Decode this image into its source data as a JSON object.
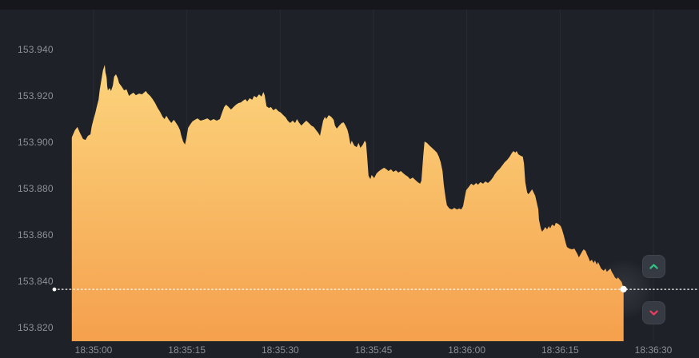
{
  "chart_data": {
    "type": "area",
    "title": "",
    "legend": "none",
    "grid": "vertical-only",
    "x_axis": {
      "unit": "time (HH:MM:SS)",
      "tick_interval_seconds": 15,
      "ticks": [
        {
          "s": 0,
          "label": "18:35:00"
        },
        {
          "s": 15,
          "label": "18:35:15"
        },
        {
          "s": 30,
          "label": "18:35:30"
        },
        {
          "s": 45,
          "label": "18:35:45"
        },
        {
          "s": 60,
          "label": "18:36:00"
        },
        {
          "s": 75,
          "label": "18:36:15"
        },
        {
          "s": 90,
          "label": "18:36:30"
        }
      ]
    },
    "y_axis": {
      "unit": "price",
      "ticks": [
        {
          "v": 153.94,
          "label": "153.940"
        },
        {
          "v": 153.92,
          "label": "153.920"
        },
        {
          "v": 153.9,
          "label": "153.900"
        },
        {
          "v": 153.88,
          "label": "153.880"
        },
        {
          "v": 153.86,
          "label": "153.860"
        },
        {
          "v": 153.84,
          "label": "153.840"
        },
        {
          "v": 153.82,
          "label": "153.820"
        }
      ]
    },
    "current_price": 153.8365,
    "price_range_shown": [
      153.814,
      153.957
    ],
    "time_range_shown_seconds": [
      -3.5,
      97.3
    ],
    "series": [
      {
        "name": "price",
        "points": [
          [
            -3.5,
            153.9021
          ],
          [
            -3.0,
            153.9052
          ],
          [
            -2.6,
            153.9066
          ],
          [
            -2.2,
            153.9041
          ],
          [
            -1.7,
            153.9014
          ],
          [
            -1.3,
            153.901
          ],
          [
            -0.9,
            153.9028
          ],
          [
            -0.5,
            153.9034
          ],
          [
            -0.3,
            153.9069
          ],
          [
            0,
            153.91
          ],
          [
            0.3,
            153.9128
          ],
          [
            0.5,
            153.9152
          ],
          [
            0.8,
            153.9183
          ],
          [
            1.0,
            153.9228
          ],
          [
            1.3,
            153.9276
          ],
          [
            1.5,
            153.931
          ],
          [
            1.8,
            153.9334
          ],
          [
            1.9,
            153.9303
          ],
          [
            2.1,
            153.9279
          ],
          [
            2.2,
            153.9241
          ],
          [
            2.3,
            153.9224
          ],
          [
            2.6,
            153.9234
          ],
          [
            2.8,
            153.9221
          ],
          [
            3.1,
            153.9245
          ],
          [
            3.3,
            153.9283
          ],
          [
            3.6,
            153.9293
          ],
          [
            3.9,
            153.9276
          ],
          [
            4.1,
            153.9255
          ],
          [
            4.5,
            153.9241
          ],
          [
            4.9,
            153.9224
          ],
          [
            5.3,
            153.9228
          ],
          [
            5.7,
            153.92
          ],
          [
            6.0,
            153.9207
          ],
          [
            6.4,
            153.9214
          ],
          [
            6.8,
            153.9203
          ],
          [
            7.3,
            153.921
          ],
          [
            7.8,
            153.9207
          ],
          [
            8.4,
            153.9221
          ],
          [
            8.7,
            153.921
          ],
          [
            9.1,
            153.92
          ],
          [
            9.5,
            153.9186
          ],
          [
            9.9,
            153.9169
          ],
          [
            10.3,
            153.9148
          ],
          [
            10.7,
            153.9131
          ],
          [
            11.1,
            153.911
          ],
          [
            11.4,
            153.91
          ],
          [
            11.7,
            153.9114
          ],
          [
            12.1,
            153.9097
          ],
          [
            12.5,
            153.9083
          ],
          [
            12.9,
            153.9097
          ],
          [
            13.2,
            153.9086
          ],
          [
            13.6,
            153.9069
          ],
          [
            13.9,
            153.9052
          ],
          [
            14.1,
            153.9028
          ],
          [
            14.4,
            153.9003
          ],
          [
            14.7,
            153.899
          ],
          [
            14.9,
            153.9014
          ],
          [
            15.2,
            153.9062
          ],
          [
            15.6,
            153.9079
          ],
          [
            15.9,
            153.909
          ],
          [
            16.3,
            153.9097
          ],
          [
            16.7,
            153.9103
          ],
          [
            17.2,
            153.9093
          ],
          [
            17.7,
            153.9097
          ],
          [
            18.3,
            153.9103
          ],
          [
            18.8,
            153.9093
          ],
          [
            19.3,
            153.91
          ],
          [
            19.8,
            153.9093
          ],
          [
            20.3,
            153.91
          ],
          [
            20.7,
            153.9131
          ],
          [
            21.0,
            153.9152
          ],
          [
            21.3,
            153.9162
          ],
          [
            21.7,
            153.9152
          ],
          [
            22.1,
            153.9141
          ],
          [
            22.5,
            153.9152
          ],
          [
            22.9,
            153.9162
          ],
          [
            23.3,
            153.9169
          ],
          [
            23.7,
            153.9172
          ],
          [
            24.0,
            153.9179
          ],
          [
            24.4,
            153.9186
          ],
          [
            24.7,
            153.9176
          ],
          [
            25.1,
            153.919
          ],
          [
            25.5,
            153.9183
          ],
          [
            25.8,
            153.92
          ],
          [
            26.2,
            153.9193
          ],
          [
            26.6,
            153.9207
          ],
          [
            27.0,
            153.9197
          ],
          [
            27.3,
            153.9217
          ],
          [
            27.5,
            153.9203
          ],
          [
            27.8,
            153.9155
          ],
          [
            28.2,
            153.9148
          ],
          [
            28.5,
            153.9152
          ],
          [
            28.9,
            153.9138
          ],
          [
            29.3,
            153.9145
          ],
          [
            29.7,
            153.9134
          ],
          [
            30.1,
            153.9128
          ],
          [
            30.5,
            153.9117
          ],
          [
            30.9,
            153.9107
          ],
          [
            31.2,
            153.9093
          ],
          [
            31.6,
            153.9083
          ],
          [
            32.0,
            153.9093
          ],
          [
            32.4,
            153.9083
          ],
          [
            32.7,
            153.91
          ],
          [
            33.0,
            153.9086
          ],
          [
            33.4,
            153.9072
          ],
          [
            33.8,
            153.9083
          ],
          [
            34.2,
            153.9093
          ],
          [
            34.6,
            153.9083
          ],
          [
            35.0,
            153.9072
          ],
          [
            35.4,
            153.9066
          ],
          [
            35.7,
            153.9055
          ],
          [
            36.1,
            153.9041
          ],
          [
            36.4,
            153.9028
          ],
          [
            36.6,
            153.9055
          ],
          [
            36.9,
            153.9093
          ],
          [
            37.2,
            153.911
          ],
          [
            37.4,
            153.91
          ],
          [
            37.8,
            153.9117
          ],
          [
            38.2,
            153.911
          ],
          [
            38.6,
            153.9097
          ],
          [
            38.8,
            153.9072
          ],
          [
            39.1,
            153.9059
          ],
          [
            39.5,
            153.9072
          ],
          [
            39.9,
            153.9083
          ],
          [
            40.2,
            153.9086
          ],
          [
            40.5,
            153.9072
          ],
          [
            40.8,
            153.9055
          ],
          [
            41.0,
            153.9034
          ],
          [
            41.3,
            153.899
          ],
          [
            41.5,
            153.9007
          ],
          [
            41.9,
            153.8986
          ],
          [
            42.3,
            153.8979
          ],
          [
            42.6,
            153.8997
          ],
          [
            42.9,
            153.8976
          ],
          [
            43.3,
            153.899
          ],
          [
            43.6,
            153.9007
          ],
          [
            43.8,
            153.8997
          ],
          [
            44.0,
            153.8931
          ],
          [
            44.2,
            153.8855
          ],
          [
            44.5,
            153.8841
          ],
          [
            44.7,
            153.8859
          ],
          [
            45.1,
            153.8845
          ],
          [
            45.5,
            153.8866
          ],
          [
            45.9,
            153.8876
          ],
          [
            46.3,
            153.8883
          ],
          [
            46.7,
            153.889
          ],
          [
            47.1,
            153.8883
          ],
          [
            47.4,
            153.8876
          ],
          [
            47.8,
            153.8883
          ],
          [
            48.2,
            153.8872
          ],
          [
            48.6,
            153.8879
          ],
          [
            49.0,
            153.8869
          ],
          [
            49.4,
            153.8876
          ],
          [
            49.8,
            153.8866
          ],
          [
            50.1,
            153.8859
          ],
          [
            50.5,
            153.8852
          ],
          [
            50.9,
            153.8841
          ],
          [
            51.3,
            153.8848
          ],
          [
            51.7,
            153.8838
          ],
          [
            52.1,
            153.8828
          ],
          [
            52.5,
            153.8821
          ],
          [
            52.7,
            153.8834
          ],
          [
            53.0,
            153.8941
          ],
          [
            53.2,
            153.9003
          ],
          [
            53.6,
            153.8997
          ],
          [
            54.0,
            153.8986
          ],
          [
            54.4,
            153.8976
          ],
          [
            54.8,
            153.8966
          ],
          [
            55.2,
            153.8955
          ],
          [
            55.5,
            153.8938
          ],
          [
            55.8,
            153.8914
          ],
          [
            56.1,
            153.8876
          ],
          [
            56.3,
            153.8817
          ],
          [
            56.6,
            153.8759
          ],
          [
            56.8,
            153.8728
          ],
          [
            57.2,
            153.8714
          ],
          [
            57.6,
            153.871
          ],
          [
            58.0,
            153.8717
          ],
          [
            58.4,
            153.871
          ],
          [
            58.8,
            153.8714
          ],
          [
            59.1,
            153.871
          ],
          [
            59.4,
            153.8724
          ],
          [
            59.7,
            153.8766
          ],
          [
            59.9,
            153.8793
          ],
          [
            60.3,
            153.8807
          ],
          [
            60.7,
            153.8821
          ],
          [
            61.1,
            153.8814
          ],
          [
            61.5,
            153.8824
          ],
          [
            61.8,
            153.8817
          ],
          [
            62.2,
            153.8828
          ],
          [
            62.6,
            153.8821
          ],
          [
            63.0,
            153.8831
          ],
          [
            63.4,
            153.8824
          ],
          [
            63.8,
            153.8834
          ],
          [
            64.2,
            153.8848
          ],
          [
            64.5,
            153.8862
          ],
          [
            64.9,
            153.8876
          ],
          [
            65.3,
            153.8886
          ],
          [
            65.7,
            153.89
          ],
          [
            66.1,
            153.8914
          ],
          [
            66.5,
            153.8924
          ],
          [
            66.9,
            153.8938
          ],
          [
            67.2,
            153.8952
          ],
          [
            67.5,
            153.8962
          ],
          [
            67.8,
            153.8955
          ],
          [
            68.0,
            153.8962
          ],
          [
            68.3,
            153.8948
          ],
          [
            68.7,
            153.8941
          ],
          [
            69.0,
            153.8938
          ],
          [
            69.2,
            153.8907
          ],
          [
            69.4,
            153.8828
          ],
          [
            69.7,
            153.8783
          ],
          [
            69.9,
            153.8776
          ],
          [
            70.2,
            153.8786
          ],
          [
            70.5,
            153.8797
          ],
          [
            70.7,
            153.8786
          ],
          [
            71.0,
            153.8769
          ],
          [
            71.2,
            153.8745
          ],
          [
            71.5,
            153.871
          ],
          [
            71.6,
            153.8666
          ],
          [
            71.9,
            153.8628
          ],
          [
            72.1,
            153.8614
          ],
          [
            72.4,
            153.8624
          ],
          [
            72.6,
            153.8634
          ],
          [
            72.9,
            153.8624
          ],
          [
            73.2,
            153.8638
          ],
          [
            73.4,
            153.8628
          ],
          [
            73.7,
            153.8645
          ],
          [
            74.1,
            153.8638
          ],
          [
            74.3,
            153.8652
          ],
          [
            74.7,
            153.8648
          ],
          [
            75.1,
            153.8638
          ],
          [
            75.3,
            153.8624
          ],
          [
            75.6,
            153.8597
          ],
          [
            75.9,
            153.8566
          ],
          [
            76.1,
            153.8548
          ],
          [
            76.5,
            153.8541
          ],
          [
            76.9,
            153.8538
          ],
          [
            77.3,
            153.8541
          ],
          [
            77.5,
            153.8531
          ],
          [
            77.8,
            153.8517
          ],
          [
            78.0,
            153.8503
          ],
          [
            78.3,
            153.8517
          ],
          [
            78.6,
            153.8531
          ],
          [
            78.8,
            153.8538
          ],
          [
            79.1,
            153.8531
          ],
          [
            79.3,
            153.8517
          ],
          [
            79.6,
            153.85
          ],
          [
            79.8,
            153.8486
          ],
          [
            80.1,
            153.8493
          ],
          [
            80.4,
            153.8479
          ],
          [
            80.6,
            153.849
          ],
          [
            80.9,
            153.8472
          ],
          [
            81.1,
            153.8483
          ],
          [
            81.4,
            153.8466
          ],
          [
            81.6,
            153.8455
          ],
          [
            82.0,
            153.8445
          ],
          [
            82.3,
            153.8455
          ],
          [
            82.5,
            153.8441
          ],
          [
            82.8,
            153.8448
          ],
          [
            83.1,
            153.8455
          ],
          [
            83.3,
            153.8441
          ],
          [
            83.6,
            153.8428
          ],
          [
            83.8,
            153.8417
          ],
          [
            84.1,
            153.841
          ],
          [
            84.3,
            153.8417
          ],
          [
            84.6,
            153.8407
          ],
          [
            84.9,
            153.8397
          ],
          [
            85.1,
            153.8379
          ],
          [
            85.2,
            153.8366
          ]
        ]
      }
    ]
  },
  "price_line": {
    "style": "dotted",
    "price": 153.8365
  },
  "controls": {
    "up_button": {
      "icon": "chevron-up-icon",
      "color": "#31c487"
    },
    "down_button": {
      "icon": "chevron-down-icon",
      "color": "#ef3c5f"
    }
  },
  "colors": {
    "background": "#1e2128",
    "top_strip": "#15171d",
    "gridline": "#282b33",
    "axis_text": "#8c9098",
    "area_top": "#fcd67e",
    "area_bottom": "#f5a04d",
    "price_line": "#ffffff",
    "price_dot": "#ffffff",
    "button_bg": "#363a43"
  }
}
